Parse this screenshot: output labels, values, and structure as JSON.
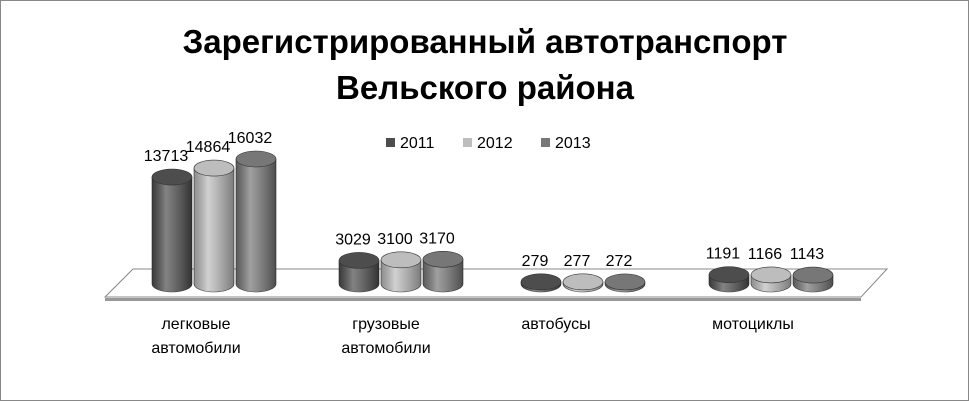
{
  "chart_data": {
    "type": "bar3d_cylinder",
    "title": "Зарегистрированный автотранспорт Вельского района",
    "categories": [
      "легковые автомобили",
      "грузовые автомобили",
      "автобусы",
      "мотоциклы"
    ],
    "series": [
      {
        "name": "2011",
        "color": "#4d4d4d",
        "values": [
          13713,
          3029,
          279,
          1191
        ]
      },
      {
        "name": "2012",
        "color": "#bdbdbd",
        "values": [
          14864,
          3100,
          277,
          1166
        ]
      },
      {
        "name": "2013",
        "color": "#777777",
        "values": [
          16032,
          3170,
          272,
          1143
        ]
      }
    ],
    "legend": "top"
  }
}
